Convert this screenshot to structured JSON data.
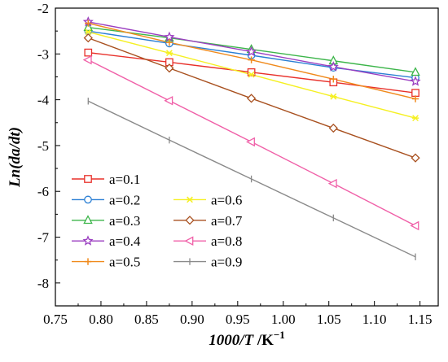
{
  "chart_data": {
    "type": "line",
    "title": "",
    "xlabel": "1000/T /K⁻¹",
    "xlabel_parts": {
      "main": "1000/",
      "var": "T",
      "unit": " /K",
      "sup": "−1"
    },
    "ylabel": "Ln(da/dt)",
    "xlim": [
      0.75,
      1.17
    ],
    "ylim": [
      -8.5,
      -2
    ],
    "xticks": [
      0.75,
      0.8,
      0.85,
      0.9,
      0.95,
      1.0,
      1.05,
      1.1,
      1.15
    ],
    "xtick_labels": [
      "0.75",
      "0.80",
      "0.85",
      "0.90",
      "0.95",
      "1.00",
      "1.05",
      "1.10",
      "1.15"
    ],
    "yticks": [
      -8,
      -7,
      -6,
      -5,
      -4,
      -3,
      -2
    ],
    "ytick_labels": [
      "-8",
      "-7",
      "-6",
      "-5",
      "-4",
      "-3",
      "-2"
    ],
    "grid": false,
    "legend_position": "bottom-left",
    "x": [
      0.786,
      0.875,
      0.965,
      1.055,
      1.145
    ],
    "series": [
      {
        "name": "a=0.1",
        "color": "#e8302a",
        "marker": "square",
        "values": [
          -2.97,
          -3.18,
          -3.4,
          -3.62,
          -3.85
        ]
      },
      {
        "name": "a=0.2",
        "color": "#2a7fd4",
        "marker": "circle",
        "values": [
          -2.5,
          -2.77,
          -3.03,
          -3.3,
          -3.52
        ]
      },
      {
        "name": "a=0.3",
        "color": "#3cb54a",
        "marker": "triangle-up",
        "values": [
          -2.42,
          -2.65,
          -2.9,
          -3.15,
          -3.4
        ]
      },
      {
        "name": "a=0.4",
        "color": "#9b3fc1",
        "marker": "star",
        "values": [
          -2.3,
          -2.63,
          -2.95,
          -3.28,
          -3.6
        ]
      },
      {
        "name": "a=0.5",
        "color": "#f08a1c",
        "marker": "plus",
        "values": [
          -2.33,
          -2.75,
          -3.13,
          -3.55,
          -3.98
        ]
      },
      {
        "name": "a=0.6",
        "color": "#f5f022",
        "marker": "asterisk",
        "values": [
          -2.52,
          -2.98,
          -3.45,
          -3.93,
          -4.4
        ]
      },
      {
        "name": "a=0.7",
        "color": "#a8501f",
        "marker": "diamond",
        "values": [
          -2.65,
          -3.31,
          -3.97,
          -4.62,
          -5.27
        ]
      },
      {
        "name": "a=0.8",
        "color": "#f060a8",
        "marker": "triangle-left",
        "values": [
          -3.13,
          -4.02,
          -4.92,
          -5.83,
          -6.75
        ]
      },
      {
        "name": "a=0.9",
        "color": "#8a8a8a",
        "marker": "vline",
        "values": [
          -4.03,
          -4.88,
          -5.73,
          -6.58,
          -7.43
        ]
      }
    ]
  }
}
